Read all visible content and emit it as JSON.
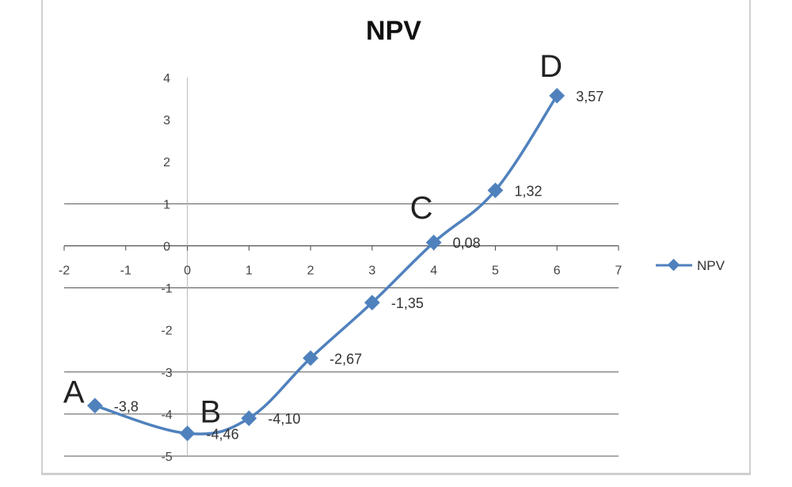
{
  "chart_data": {
    "type": "line",
    "title": "NPV",
    "xlabel": "",
    "ylabel": "",
    "xlim": [
      -2,
      7
    ],
    "ylim": [
      -5,
      4
    ],
    "x_ticks": [
      "-2",
      "-1",
      "0",
      "1",
      "2",
      "3",
      "4",
      "5",
      "6",
      "7"
    ],
    "y_ticks": [
      "4",
      "3",
      "2",
      "1",
      "0",
      "-1",
      "-2",
      "-3",
      "-4",
      "-5"
    ],
    "grid": true,
    "legend_position": "right",
    "series": [
      {
        "name": "NPV",
        "color": "#4f81bd",
        "x": [
          -1.5,
          0,
          1,
          2,
          3,
          4,
          5,
          6
        ],
        "y": [
          -3.8,
          -4.46,
          -4.1,
          -2.67,
          -1.35,
          0.08,
          1.32,
          3.57
        ],
        "labels": [
          "-3,8",
          "-4,46",
          "-4,10",
          "-2,67",
          "-1,35",
          "0,08",
          "1,32",
          "3,57"
        ]
      }
    ],
    "annotations": [
      {
        "text": "A",
        "x": -1.5,
        "y": -3.8
      },
      {
        "text": "B",
        "x": 0,
        "y": -4.46
      },
      {
        "text": "C",
        "x": 4,
        "y": 0.08
      },
      {
        "text": "D",
        "x": 6,
        "y": 3.57
      }
    ]
  }
}
